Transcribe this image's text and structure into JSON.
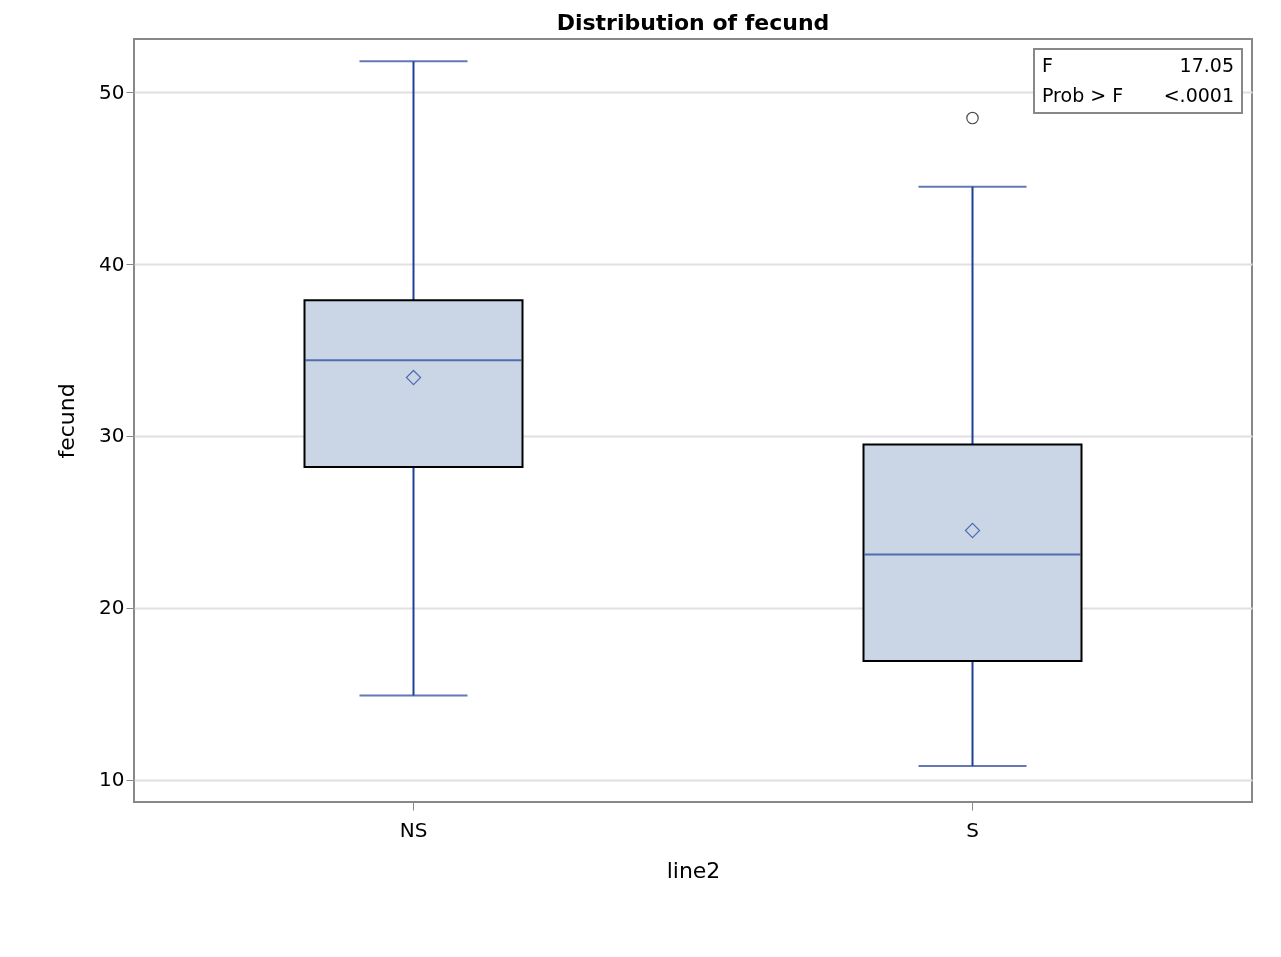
{
  "chart_data": {
    "type": "box",
    "title": "Distribution of fecund",
    "xlabel": "line2",
    "ylabel": "fecund",
    "categories": [
      "NS",
      "S"
    ],
    "series": [
      {
        "color": "#cad6e6",
        "boxes": [
          {
            "low": 14.9,
            "q1": 28.2,
            "median": 34.4,
            "q3": 37.9,
            "high": 51.8,
            "mean": 33.4
          },
          {
            "low": 10.8,
            "q1": 16.9,
            "median": 23.1,
            "q3": 29.5,
            "high": 44.5,
            "mean": 24.5,
            "outliers": [
              48.5
            ]
          }
        ]
      }
    ],
    "ylim": [
      8.7,
      53.1
    ],
    "yticks": [
      10,
      20,
      30,
      40,
      50
    ],
    "grid": "y",
    "annotations": [
      "F 17.05",
      "Prob > F <.0001"
    ]
  }
}
